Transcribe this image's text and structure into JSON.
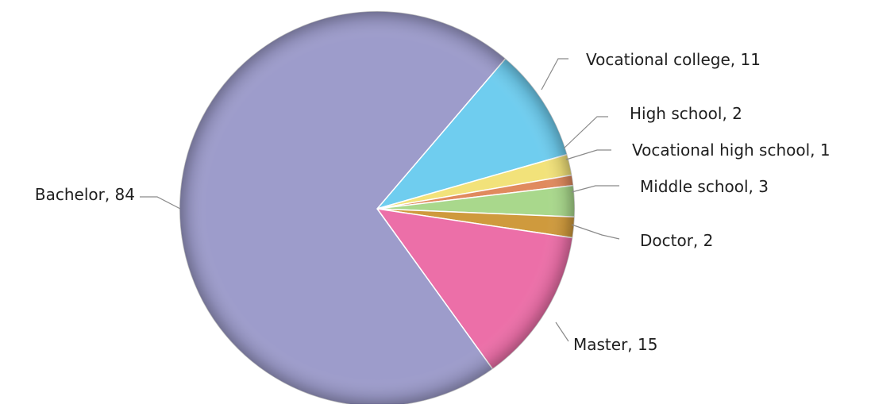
{
  "chart_data": {
    "type": "pie",
    "categories": [
      "Vocational college",
      "High school",
      "Vocational high school",
      "Middle school",
      "Doctor",
      "Master",
      "Bachelor"
    ],
    "values": [
      11,
      2,
      1,
      3,
      2,
      15,
      84
    ],
    "colors": [
      "#6fcdef",
      "#f2e27a",
      "#e08a5e",
      "#a9d88c",
      "#cf9a3d",
      "#ec6fa8",
      "#9d9ccb"
    ],
    "data_labels": [
      "Vocational college, 11",
      "High school, 2",
      "Vocational high school, 1",
      "Middle school, 3",
      "Doctor, 2",
      "Master, 15",
      "Bachelor, 84"
    ],
    "legend": false
  }
}
